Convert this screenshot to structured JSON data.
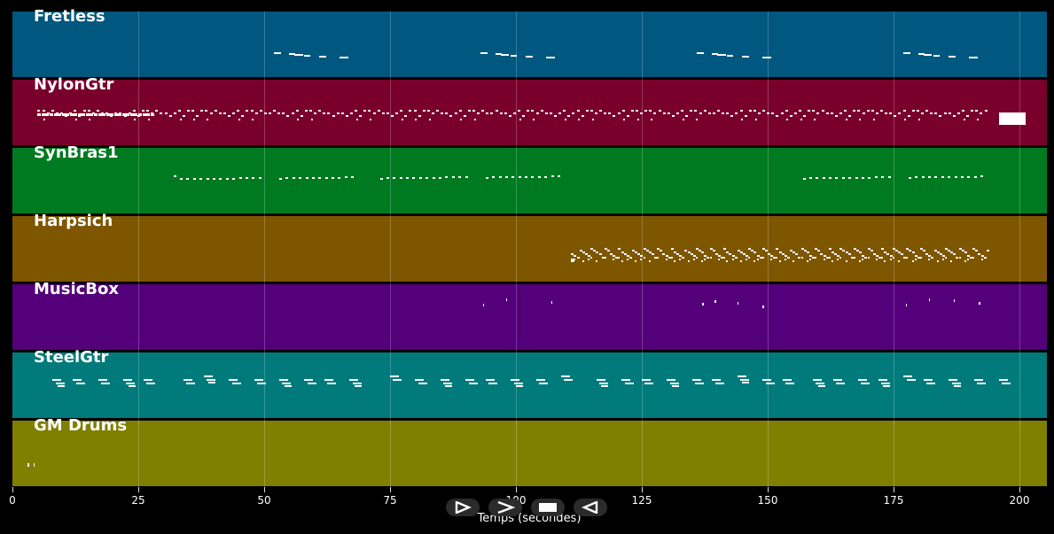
{
  "tracks": [
    {
      "name": "Fretless",
      "color": "#00577f",
      "pattern": "fretless"
    },
    {
      "name": "NylonGtr",
      "color": "#7a002c",
      "pattern": "nylon"
    },
    {
      "name": "SynBras1",
      "color": "#007a20",
      "pattern": "synbrass"
    },
    {
      "name": "Harpsich",
      "color": "#7e5600",
      "pattern": "harpsichord"
    },
    {
      "name": "MusicBox",
      "color": "#54007a",
      "pattern": "musicbox"
    },
    {
      "name": "SteelGtr",
      "color": "#007a7a",
      "pattern": "steel"
    },
    {
      "name": "GM Drums",
      "color": "#7f7f00",
      "pattern": "drums"
    }
  ],
  "xaxis": {
    "label": "Temps (secondes)",
    "min": 0,
    "max": 205.5,
    "ticks": [
      0,
      25,
      50,
      75,
      100,
      125,
      150,
      175,
      200
    ]
  },
  "controls": [
    {
      "name": "play-icon"
    },
    {
      "name": "forward-icon"
    },
    {
      "name": "stop-icon"
    },
    {
      "name": "rewind-icon"
    }
  ]
}
